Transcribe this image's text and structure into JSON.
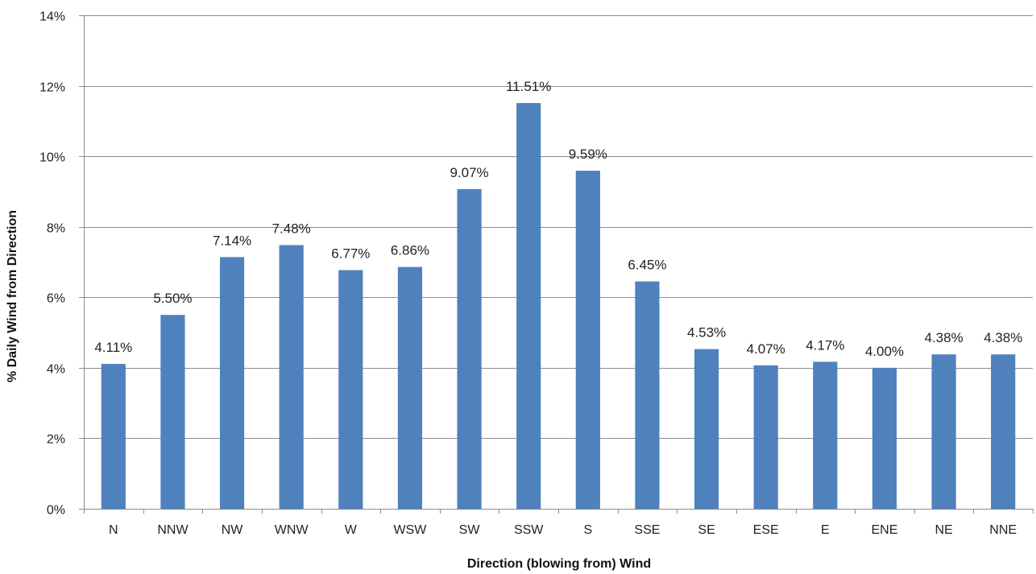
{
  "chart_data": {
    "type": "bar",
    "title": "",
    "xlabel": "Direction (blowing from) Wind",
    "ylabel": "% Daily Wind from Direction",
    "categories": [
      "N",
      "NNW",
      "NW",
      "WNW",
      "W",
      "WSW",
      "SW",
      "SSW",
      "S",
      "SSE",
      "SE",
      "ESE",
      "E",
      "ENE",
      "NE",
      "NNE"
    ],
    "values": [
      4.11,
      5.5,
      7.14,
      7.48,
      6.77,
      6.86,
      9.07,
      11.51,
      9.59,
      6.45,
      4.53,
      4.07,
      4.17,
      4.0,
      4.38,
      4.38
    ],
    "data_labels": [
      "4.11%",
      "5.50%",
      "7.14%",
      "7.48%",
      "6.77%",
      "6.86%",
      "9.07%",
      "11.51%",
      "9.59%",
      "6.45%",
      "4.53%",
      "4.07%",
      "4.17%",
      "4.00%",
      "4.38%",
      "4.38%"
    ],
    "ylim": [
      0,
      14
    ],
    "yticks": [
      0,
      2,
      4,
      6,
      8,
      10,
      12,
      14
    ],
    "ytick_labels": [
      "0%",
      "2%",
      "4%",
      "6%",
      "8%",
      "10%",
      "12%",
      "14%"
    ],
    "grid": true,
    "legend": "none",
    "bar_color": "#4f81bd"
  }
}
